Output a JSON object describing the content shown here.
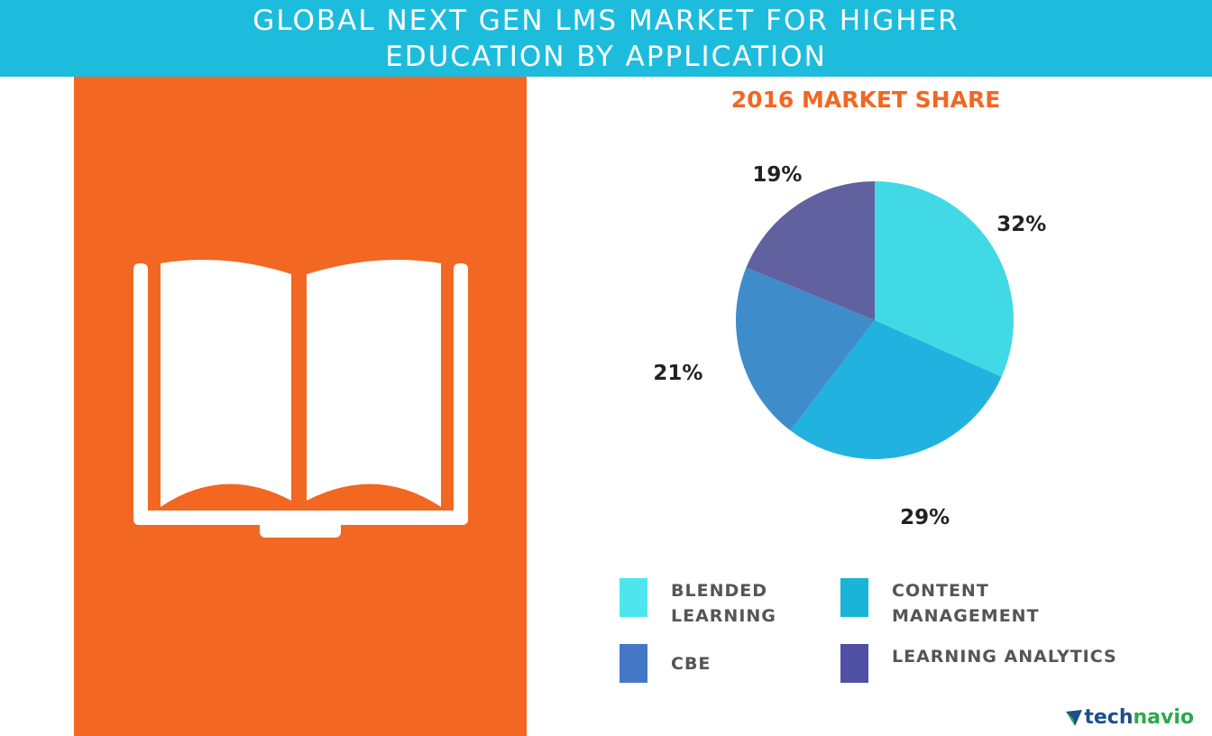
{
  "header": {
    "title_line1": "GLOBAL NEXT GEN LMS MARKET FOR HIGHER",
    "title_line2": "EDUCATION BY APPLICATION"
  },
  "icon": "open-book-icon",
  "logo": {
    "part1": "tech",
    "part2": "navio",
    "icon": "technavio-logo-icon"
  },
  "chart_data": {
    "type": "pie",
    "title": "2016 MARKET SHARE",
    "series": [
      {
        "name": "BLENDED LEARNING",
        "value": 32,
        "label": "32%",
        "color": "#42d9e6"
      },
      {
        "name": "CONTENT MANAGEMENT",
        "value": 29,
        "label": "29%",
        "color": "#22b2e0"
      },
      {
        "name": "CBE",
        "value": 21,
        "label": "21%",
        "color": "#3f8ccb"
      },
      {
        "name": "LEARNING ANALYTICS",
        "value": 19,
        "label": "19%",
        "color": "#61619f"
      }
    ],
    "legend": [
      {
        "line1": "BLENDED",
        "line2": "LEARNING",
        "color": "#4de6ee"
      },
      {
        "line1": "CONTENT",
        "line2": "MANAGEMENT",
        "color": "#19b4d8"
      },
      {
        "line1": "CBE",
        "line2": "",
        "color": "#4478c6"
      },
      {
        "line1": "LEARNING ANALYTICS",
        "line2": "",
        "color": "#4f4fa4"
      }
    ]
  }
}
